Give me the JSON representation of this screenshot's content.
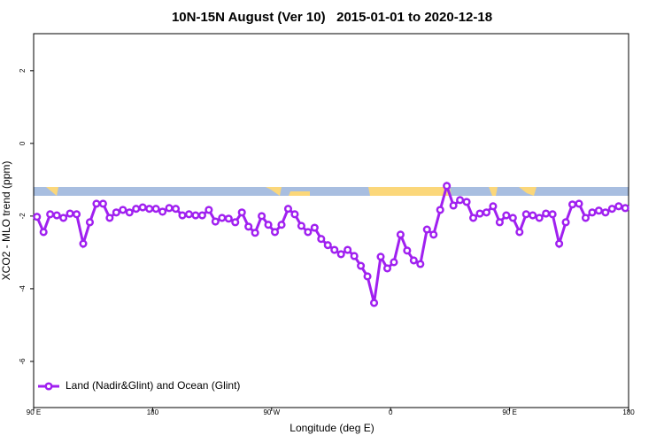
{
  "chart_data": {
    "type": "line",
    "title": "10N-15N August (Ver 10)   2015-01-01 to 2020-12-18",
    "x_label": "Longitude (deg E)",
    "y_label": "XCO2 - MLO trend (ppm)",
    "xlim": [
      90,
      540
    ],
    "ylim": [
      -7.27,
      3.02
    ],
    "xticks": [
      {
        "value": 90,
        "label": "90 E"
      },
      180,
      {
        "value": 270,
        "label": "90 W"
      },
      {
        "value": 360,
        "label": "0"
      },
      {
        "value": 450,
        "label": "90 E"
      },
      {
        "value": 540,
        "label": "180"
      }
    ],
    "yticks": [
      2,
      0,
      -2,
      -4,
      -6
    ],
    "legend": "bottom-left",
    "x": [
      92.5,
      97.5,
      102.5,
      107.5,
      112.5,
      117.5,
      122.5,
      127.5,
      132.5,
      137.5,
      142.5,
      147.5,
      152.5,
      157.5,
      162.5,
      167.5,
      172.5,
      177.5,
      182.5,
      187.5,
      192.5,
      197.5,
      202.5,
      207.5,
      212.5,
      217.5,
      222.5,
      227.5,
      232.5,
      237.5,
      242.5,
      247.5,
      252.5,
      257.5,
      262.5,
      267.5,
      272.5,
      277.5,
      282.5,
      287.5,
      292.5,
      297.5,
      302.5,
      307.5,
      312.5,
      317.5,
      322.5,
      327.5,
      332.5,
      337.5,
      342.5,
      347.5,
      352.5,
      357.5,
      362.5,
      367.5,
      372.5,
      377.5,
      382.5,
      387.5,
      392.5,
      397.5,
      402.5,
      407.5,
      412.5,
      417.5,
      422.5,
      427.5,
      432.5,
      437.5,
      442.5,
      447.5,
      452.5,
      457.5,
      462.5,
      467.5,
      472.5,
      477.5,
      482.5,
      487.5,
      492.5,
      497.5,
      502.5,
      507.5,
      512.5,
      517.5,
      522.5,
      527.5,
      532.5,
      537.5
    ],
    "series": [
      {
        "name": "Land (Nadir&Glint) and Ocean (Glint)",
        "color": "#a020f0",
        "values": [
          -2.02,
          -2.44,
          -1.95,
          -1.98,
          -2.05,
          -1.93,
          -1.95,
          -2.76,
          -2.17,
          -1.66,
          -1.66,
          -2.05,
          -1.9,
          -1.83,
          -1.9,
          -1.8,
          -1.76,
          -1.8,
          -1.8,
          -1.88,
          -1.78,
          -1.8,
          -1.98,
          -1.95,
          -1.98,
          -1.98,
          -1.83,
          -2.15,
          -2.05,
          -2.07,
          -2.17,
          -1.9,
          -2.29,
          -2.46,
          -2.0,
          -2.24,
          -2.44,
          -2.24,
          -1.8,
          -1.95,
          -2.27,
          -2.44,
          -2.32,
          -2.63,
          -2.8,
          -2.93,
          -3.05,
          -2.93,
          -3.1,
          -3.37,
          -3.66,
          -4.39,
          -3.12,
          -3.44,
          -3.27,
          -2.51,
          -2.95,
          -3.22,
          -3.32,
          -2.37,
          -2.51,
          -1.83,
          -1.17,
          -1.71,
          -1.56,
          -1.61,
          -2.05,
          -1.93,
          -1.9,
          -1.73,
          -2.17,
          -1.98,
          -2.05,
          -2.44,
          -1.95,
          -1.98,
          -2.05,
          -1.93,
          -1.95,
          -2.76,
          -2.17,
          -1.68,
          -1.66,
          -2.05,
          -1.9,
          -1.85,
          -1.9,
          -1.8,
          -1.73,
          -1.78
        ]
      }
    ]
  }
}
